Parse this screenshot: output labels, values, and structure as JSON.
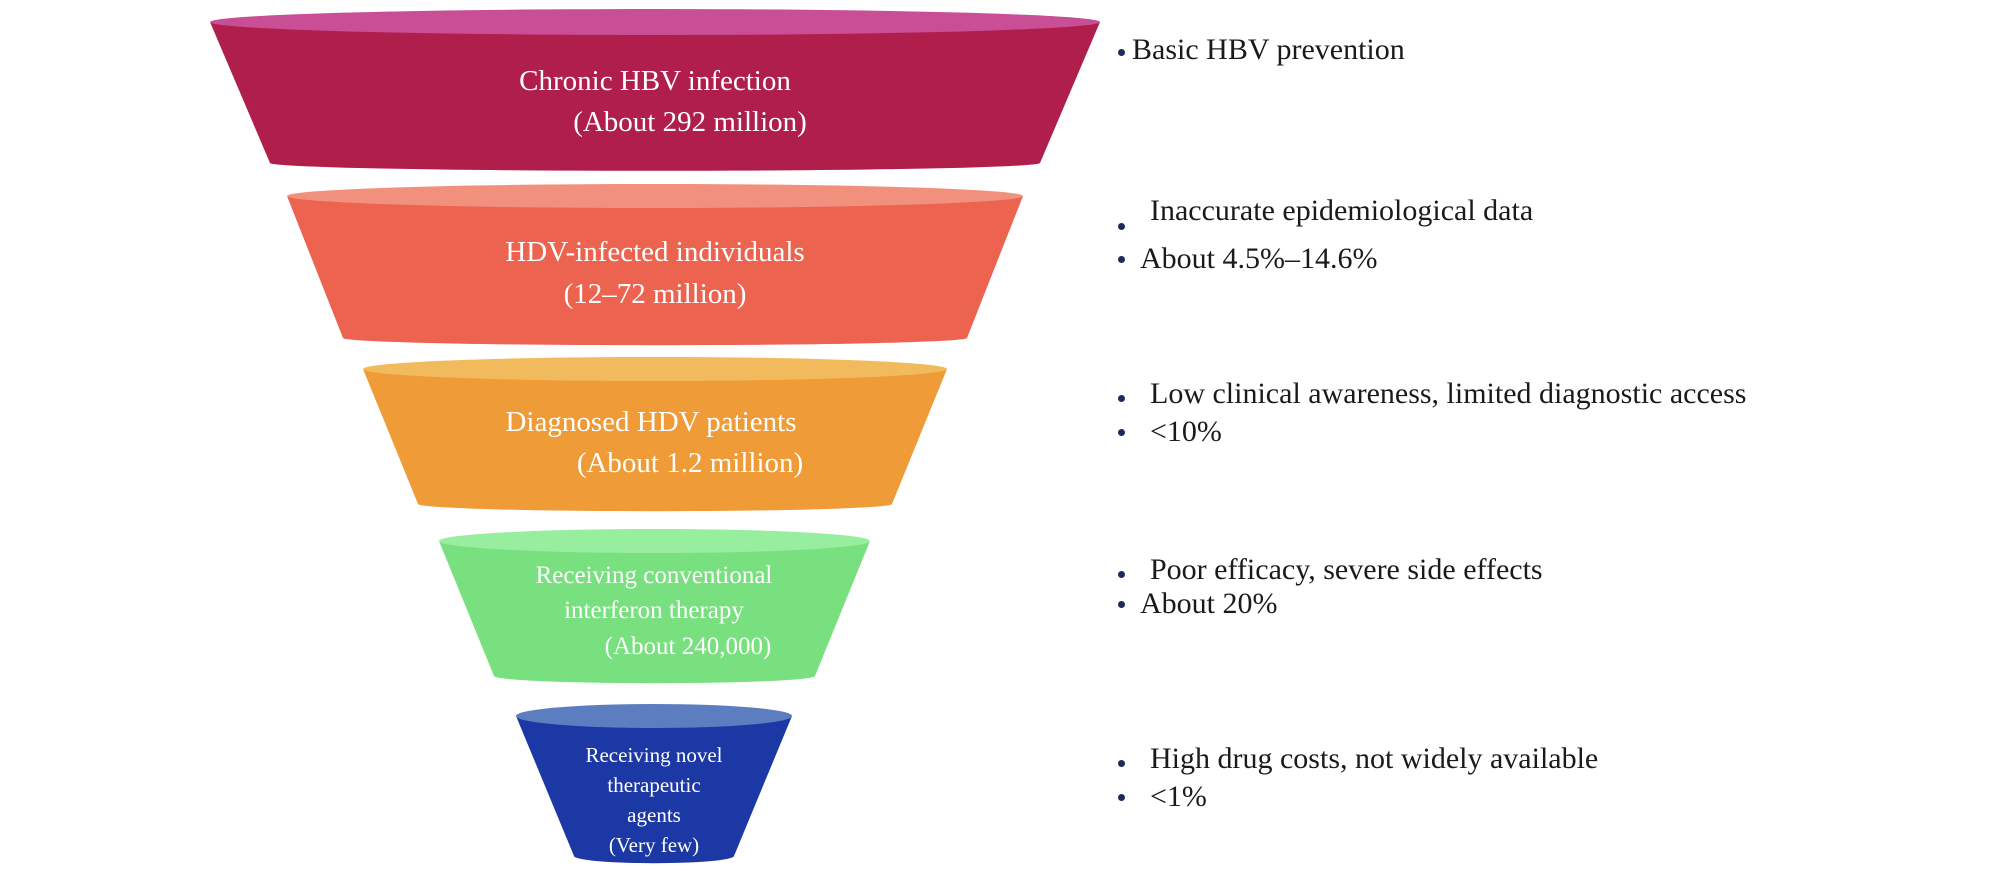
{
  "colors": {
    "stage1_body": "#b01e4b",
    "stage1_top": "#c84e96",
    "stage2_body": "#ec634f",
    "stage2_top": "#f2907e",
    "stage3_body": "#ef9b38",
    "stage3_top": "#f1bb5d",
    "stage4_body": "#79e07f",
    "stage4_top": "#97ee9f",
    "stage5_body": "#1c38a5",
    "stage5_top": "#5c7ec1",
    "note_text": "#1a1a1a",
    "bullet": "#1f2a5a"
  },
  "funnel": {
    "stages": [
      {
        "id": "chronic-hbv-infection",
        "lines": [
          "Chronic HBV infection",
          "(About 292 million)"
        ]
      },
      {
        "id": "hdv-infected-individuals",
        "lines": [
          "HDV-infected individuals",
          "(12–72 million)"
        ]
      },
      {
        "id": "diagnosed-hdv-patients",
        "lines": [
          "Diagnosed HDV patients",
          "(About 1.2 million)"
        ]
      },
      {
        "id": "receiving-conventional-interferon",
        "lines": [
          "Receiving conventional",
          "interferon therapy",
          "(About 240,000)"
        ]
      },
      {
        "id": "receiving-novel-agents",
        "lines": [
          "Receiving novel",
          "therapeutic",
          "agents",
          "(Very few)"
        ]
      }
    ]
  },
  "notes": [
    {
      "id": "notes-stage-1",
      "items": [
        "Basic HBV prevention"
      ]
    },
    {
      "id": "notes-stage-2",
      "items": [
        "Inaccurate epidemiological data",
        "About 4.5%–14.6%"
      ]
    },
    {
      "id": "notes-stage-3",
      "items": [
        "Low clinical awareness, limited diagnostic access",
        "<10%"
      ]
    },
    {
      "id": "notes-stage-4",
      "items": [
        "Poor efficacy, severe side effects",
        "About 20%"
      ]
    },
    {
      "id": "notes-stage-5",
      "items": [
        "High drug costs, not widely available",
        "<1%"
      ]
    }
  ]
}
